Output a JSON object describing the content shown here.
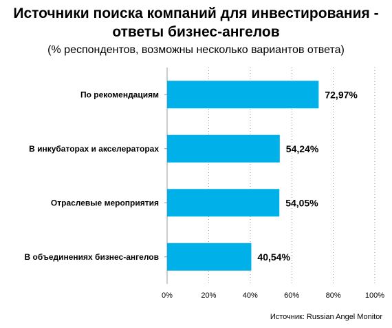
{
  "chart_data": {
    "type": "bar",
    "orientation": "horizontal",
    "title": "Источники поиска компаний для инвестирования - ответы бизнес-ангелов",
    "title_lines": [
      "Источники поиска компаний для инвестирования -",
      "ответы бизнес-ангелов"
    ],
    "subtitle": "(% респондентов, возможны несколько вариантов ответа)",
    "categories": [
      "По рекомендациям",
      "В инкубаторах и акселераторах",
      "Отраслевые мероприятия",
      "В объединениях бизнес-ангелов"
    ],
    "values": [
      72.97,
      54.24,
      54.05,
      40.54
    ],
    "value_labels": [
      "72,97%",
      "54,24%",
      "54,05%",
      "40,54%"
    ],
    "xlim": [
      0,
      100
    ],
    "xticks": [
      0,
      20,
      40,
      60,
      80,
      100
    ],
    "xtick_labels": [
      "0%",
      "20%",
      "40%",
      "60%",
      "80%",
      "100%"
    ],
    "grid": "vertical dotted",
    "legend": "none",
    "bar_color": "#00b0e8",
    "source": "Источник:  Russian Angel Monitor"
  }
}
